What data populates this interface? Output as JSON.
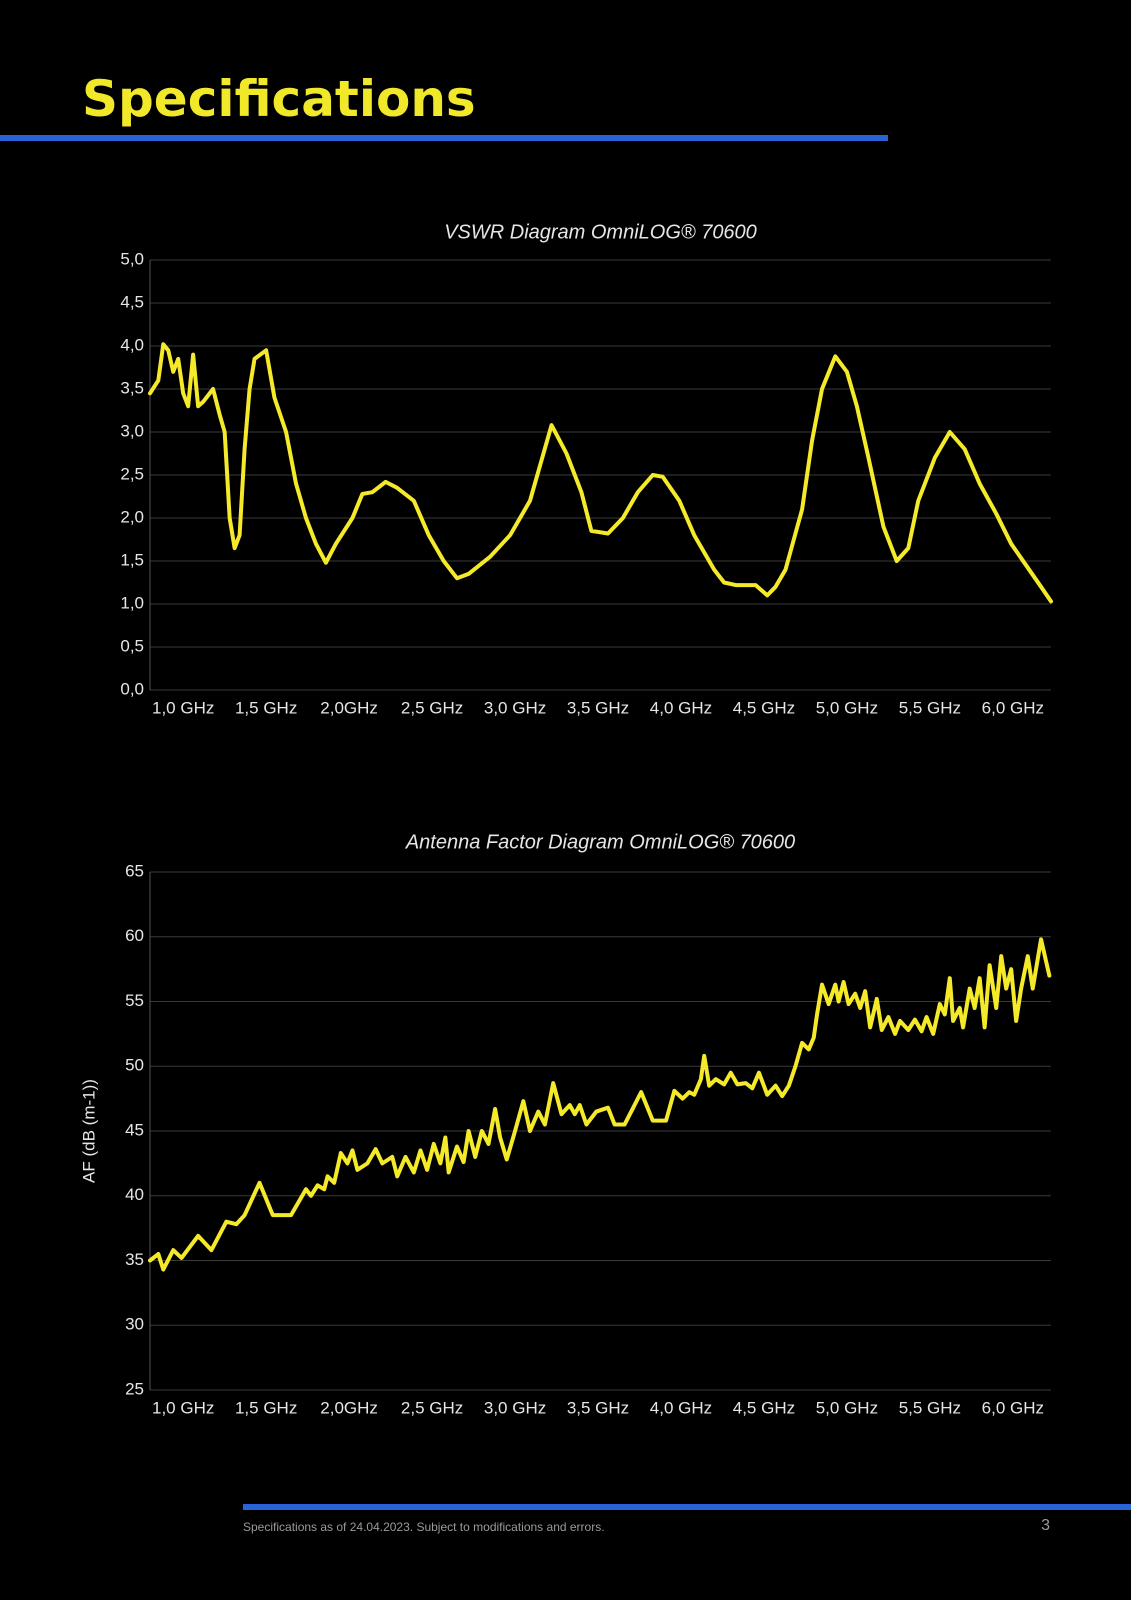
{
  "header": {
    "title": "Specifications"
  },
  "chart_data": [
    {
      "type": "line",
      "title": "VSWR Diagram OmniLOG® 70600",
      "xlim": [
        0.8,
        6.23
      ],
      "xticks": [
        {
          "value": 1.0,
          "label": "1,0 GHz"
        },
        {
          "value": 1.5,
          "label": "1,5 GHz"
        },
        {
          "value": 2.0,
          "label": "2,0GHz"
        },
        {
          "value": 2.5,
          "label": "2,5 GHz"
        },
        {
          "value": 3.0,
          "label": "3,0 GHz"
        },
        {
          "value": 3.5,
          "label": "3,5 GHz"
        },
        {
          "value": 4.0,
          "label": "4,0 GHz"
        },
        {
          "value": 4.5,
          "label": "4,5 GHz"
        },
        {
          "value": 5.0,
          "label": "5,0 GHz"
        },
        {
          "value": 5.5,
          "label": "5,5 GHz"
        },
        {
          "value": 6.0,
          "label": "6,0 GHz"
        }
      ],
      "ylim": [
        0,
        5
      ],
      "yticks": [
        {
          "value": 0,
          "label": "0,0"
        },
        {
          "value": 0.5,
          "label": "0,5"
        },
        {
          "value": 1,
          "label": "1,0"
        },
        {
          "value": 1.5,
          "label": "1,5"
        },
        {
          "value": 2,
          "label": "2,0"
        },
        {
          "value": 2.5,
          "label": "2,5"
        },
        {
          "value": 3,
          "label": "3,0"
        },
        {
          "value": 3.5,
          "label": "3,5"
        },
        {
          "value": 4,
          "label": "4,0"
        },
        {
          "value": 4.5,
          "label": "4,5"
        },
        {
          "value": 5,
          "label": "5,0"
        }
      ],
      "grid": true,
      "x": [
        0.8,
        0.85,
        0.88,
        0.91,
        0.94,
        0.97,
        1.0,
        1.03,
        1.06,
        1.09,
        1.12,
        1.18,
        1.22,
        1.25,
        1.28,
        1.31,
        1.34,
        1.37,
        1.4,
        1.43,
        1.5,
        1.55,
        1.62,
        1.68,
        1.74,
        1.8,
        1.86,
        1.92,
        2.02,
        2.08,
        2.14,
        2.22,
        2.29,
        2.39,
        2.48,
        2.57,
        2.65,
        2.72,
        2.85,
        2.97,
        3.09,
        3.22,
        3.31,
        3.4,
        3.46,
        3.56,
        3.65,
        3.74,
        3.83,
        3.89,
        3.99,
        4.08,
        4.2,
        4.26,
        4.33,
        4.45,
        4.52,
        4.57,
        4.63,
        4.73,
        4.79,
        4.85,
        4.93,
        5.0,
        5.06,
        5.13,
        5.22,
        5.3,
        5.37,
        5.43,
        5.53,
        5.62,
        5.71,
        5.8,
        5.9,
        5.99,
        6.08,
        6.17,
        6.23
      ],
      "series": [
        {
          "color": "#f5ea2a",
          "values": [
            3.45,
            3.6,
            4.02,
            3.95,
            3.7,
            3.85,
            3.45,
            3.3,
            3.9,
            3.3,
            3.35,
            3.5,
            3.2,
            3.0,
            2.0,
            1.65,
            1.8,
            2.8,
            3.5,
            3.85,
            3.95,
            3.4,
            3.0,
            2.4,
            2.0,
            1.7,
            1.48,
            1.7,
            2.0,
            2.28,
            2.3,
            2.42,
            2.35,
            2.2,
            1.8,
            1.5,
            1.3,
            1.35,
            1.55,
            1.8,
            2.2,
            3.08,
            2.75,
            2.3,
            1.85,
            1.82,
            2.0,
            2.3,
            2.5,
            2.48,
            2.2,
            1.8,
            1.4,
            1.25,
            1.22,
            1.22,
            1.1,
            1.2,
            1.4,
            2.1,
            2.9,
            3.5,
            3.88,
            3.7,
            3.3,
            2.7,
            1.9,
            1.5,
            1.65,
            2.2,
            2.7,
            3.0,
            2.8,
            2.4,
            2.05,
            1.7,
            1.45,
            1.2,
            1.03
          ]
        }
      ]
    },
    {
      "type": "line",
      "title": "Antenna Factor Diagram OmniLOG® 70600",
      "y_label": "AF (dB (m-1))",
      "xlim": [
        0.8,
        6.23
      ],
      "xticks": [
        {
          "value": 1.0,
          "label": "1,0 GHz"
        },
        {
          "value": 1.5,
          "label": "1,5 GHz"
        },
        {
          "value": 2.0,
          "label": "2,0GHz"
        },
        {
          "value": 2.5,
          "label": "2,5 GHz"
        },
        {
          "value": 3.0,
          "label": "3,0 GHz"
        },
        {
          "value": 3.5,
          "label": "3,5 GHz"
        },
        {
          "value": 4.0,
          "label": "4,0 GHz"
        },
        {
          "value": 4.5,
          "label": "4,5 GHz"
        },
        {
          "value": 5.0,
          "label": "5,0 GHz"
        },
        {
          "value": 5.5,
          "label": "5,5 GHz"
        },
        {
          "value": 6.0,
          "label": "6,0 GHz"
        }
      ],
      "ylim": [
        25,
        65
      ],
      "yticks": [
        25,
        30,
        35,
        40,
        45,
        50,
        55,
        60,
        65
      ],
      "grid": true,
      "x": [
        0.8,
        0.85,
        0.88,
        0.94,
        0.99,
        1.09,
        1.17,
        1.26,
        1.32,
        1.37,
        1.46,
        1.54,
        1.65,
        1.74,
        1.77,
        1.81,
        1.85,
        1.87,
        1.91,
        1.95,
        1.99,
        2.02,
        2.05,
        2.11,
        2.16,
        2.2,
        2.26,
        2.29,
        2.34,
        2.39,
        2.43,
        2.47,
        2.51,
        2.55,
        2.58,
        2.6,
        2.65,
        2.69,
        2.72,
        2.76,
        2.8,
        2.84,
        2.88,
        2.91,
        2.95,
        3.0,
        3.05,
        3.09,
        3.14,
        3.18,
        3.23,
        3.28,
        3.33,
        3.36,
        3.39,
        3.43,
        3.49,
        3.56,
        3.6,
        3.66,
        3.76,
        3.83,
        3.91,
        3.96,
        4.01,
        4.05,
        4.08,
        4.12,
        4.14,
        4.17,
        4.21,
        4.26,
        4.3,
        4.34,
        4.39,
        4.43,
        4.47,
        4.52,
        4.57,
        4.61,
        4.65,
        4.69,
        4.73,
        4.77,
        4.8,
        4.82,
        4.85,
        4.89,
        4.93,
        4.95,
        4.98,
        5.01,
        5.05,
        5.08,
        5.11,
        5.14,
        5.18,
        5.21,
        5.25,
        5.29,
        5.32,
        5.37,
        5.41,
        5.45,
        5.48,
        5.52,
        5.56,
        5.59,
        5.62,
        5.64,
        5.68,
        5.7,
        5.74,
        5.77,
        5.8,
        5.83,
        5.86,
        5.9,
        5.93,
        5.96,
        5.99,
        6.02,
        6.05,
        6.09,
        6.12,
        6.17,
        6.22
      ],
      "series": [
        {
          "color": "#f5ea2a",
          "values": [
            35,
            35.5,
            34.3,
            35.8,
            35.2,
            36.9,
            35.8,
            38,
            37.8,
            38.5,
            41,
            38.5,
            38.5,
            40.5,
            40,
            40.8,
            40.5,
            41.5,
            41,
            43.3,
            42.5,
            43.5,
            42,
            42.5,
            43.6,
            42.5,
            43,
            41.5,
            43,
            41.8,
            43.5,
            42,
            44,
            42.5,
            44.5,
            41.8,
            43.8,
            42.6,
            45,
            43,
            45,
            44,
            46.7,
            44.5,
            42.8,
            45,
            47.3,
            45,
            46.5,
            45.5,
            48.7,
            46.3,
            47,
            46.3,
            47,
            45.5,
            46.5,
            46.8,
            45.5,
            45.5,
            48,
            45.8,
            45.8,
            48.1,
            47.5,
            48,
            47.8,
            49,
            50.8,
            48.5,
            49,
            48.6,
            49.5,
            48.6,
            48.7,
            48.3,
            49.5,
            47.8,
            48.5,
            47.7,
            48.5,
            50,
            51.8,
            51.3,
            52.2,
            54,
            56.3,
            54.8,
            56.3,
            55,
            56.5,
            54.8,
            55.6,
            54.5,
            55.8,
            53,
            55.2,
            52.8,
            53.8,
            52.5,
            53.5,
            52.8,
            53.6,
            52.7,
            53.8,
            52.5,
            54.8,
            54,
            56.8,
            53.5,
            54.5,
            53,
            56,
            54.5,
            56.8,
            53,
            57.8,
            54.5,
            58.5,
            56,
            57.5,
            53.5,
            56,
            58.5,
            56,
            59.8,
            57
          ]
        }
      ]
    }
  ],
  "footer": {
    "text": "Specifications as of 24.04.2023.  Subject to modifications and errors.",
    "page": "3"
  }
}
